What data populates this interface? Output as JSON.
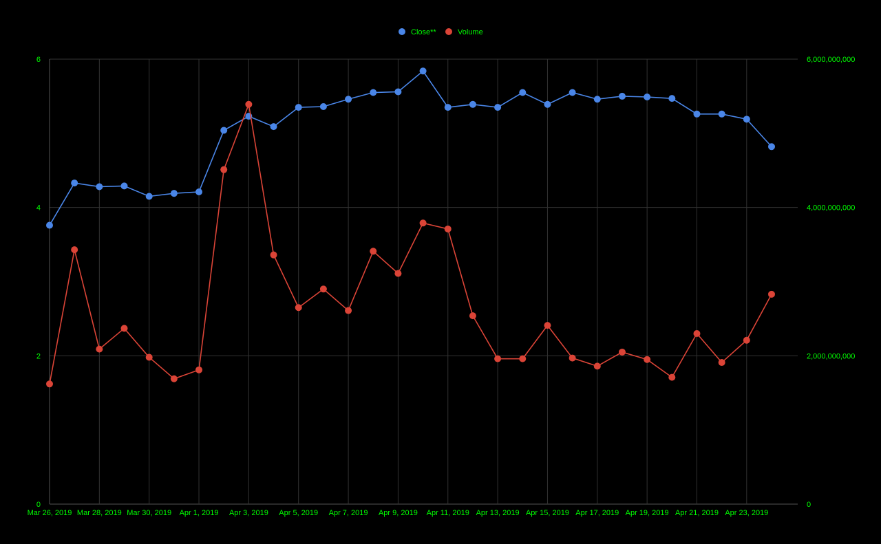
{
  "chart_data": {
    "type": "line",
    "legend_position": "top",
    "grid": true,
    "x": [
      "Mar 26, 2019",
      "Mar 27, 2019",
      "Mar 28, 2019",
      "Mar 29, 2019",
      "Mar 30, 2019",
      "Mar 31, 2019",
      "Apr 1, 2019",
      "Apr 2, 2019",
      "Apr 3, 2019",
      "Apr 4, 2019",
      "Apr 5, 2019",
      "Apr 6, 2019",
      "Apr 7, 2019",
      "Apr 8, 2019",
      "Apr 9, 2019",
      "Apr 10, 2019",
      "Apr 11, 2019",
      "Apr 12, 2019",
      "Apr 13, 2019",
      "Apr 14, 2019",
      "Apr 15, 2019",
      "Apr 16, 2019",
      "Apr 17, 2019",
      "Apr 18, 2019",
      "Apr 19, 2019",
      "Apr 20, 2019",
      "Apr 21, 2019",
      "Apr 22, 2019",
      "Apr 23, 2019",
      "Apr 24, 2019"
    ],
    "x_tick_labels": [
      "Mar 26, 2019",
      "Mar 28, 2019",
      "Mar 30, 2019",
      "Apr 1, 2019",
      "Apr 3, 2019",
      "Apr 5, 2019",
      "Apr 7, 2019",
      "Apr 9, 2019",
      "Apr 11, 2019",
      "Apr 13, 2019",
      "Apr 15, 2019",
      "Apr 17, 2019",
      "Apr 19, 2019",
      "Apr 21, 2019",
      "Apr 23, 2019"
    ],
    "y_left": {
      "ylim": [
        0,
        6
      ],
      "ticks": [
        "0",
        "2",
        "4",
        "6"
      ]
    },
    "y_right": {
      "ylim": [
        0,
        6000000000
      ],
      "ticks": [
        "0",
        "2,000,000,000",
        "4,000,000,000",
        "6,000,000,000"
      ]
    },
    "series": [
      {
        "name": "Close**",
        "color": "#4a86e8",
        "axis": "left",
        "values": [
          3.76,
          4.33,
          4.28,
          4.29,
          4.15,
          4.19,
          4.21,
          5.04,
          5.23,
          5.09,
          5.35,
          5.36,
          5.46,
          5.55,
          5.56,
          5.84,
          5.35,
          5.39,
          5.35,
          5.55,
          5.39,
          5.55,
          5.46,
          5.5,
          5.49,
          5.47,
          5.26,
          5.26,
          5.19,
          4.82
        ]
      },
      {
        "name": "Volume",
        "color": "#db4437",
        "axis": "right",
        "values": [
          1620000000,
          3430000000,
          2090000000,
          2370000000,
          1980000000,
          1690000000,
          1810000000,
          4510000000,
          5390000000,
          3360000000,
          2650000000,
          2900000000,
          2610000000,
          3410000000,
          3110000000,
          3790000000,
          3710000000,
          2540000000,
          1960000000,
          1960000000,
          2410000000,
          1970000000,
          1860000000,
          2050000000,
          1950000000,
          1710000000,
          2300000000,
          1910000000,
          2210000000,
          2830000000
        ]
      }
    ],
    "colors": {
      "background": "#000000",
      "axis_text": "#00ff00",
      "gridline": "#333333"
    }
  }
}
